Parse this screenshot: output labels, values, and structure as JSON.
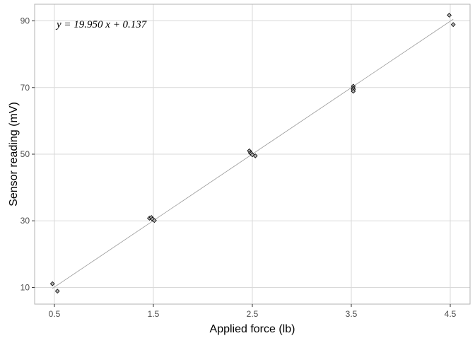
{
  "chart_data": {
    "type": "scatter",
    "title": "",
    "xlabel": "Applied force (lb)",
    "ylabel": "Sensor reading (mV)",
    "xlim": [
      0.3,
      4.7
    ],
    "ylim": [
      5,
      95
    ],
    "xticks": [
      0.5,
      1.5,
      2.5,
      3.5,
      4.5
    ],
    "xtick_labels": [
      "0.5",
      "1.5",
      "2.5",
      "3.5",
      "4.5"
    ],
    "yticks": [
      10,
      30,
      50,
      70,
      90
    ],
    "ytick_labels": [
      "10",
      "30",
      "50",
      "70",
      "90"
    ],
    "grid": true,
    "legend": "none",
    "points": [
      {
        "x": 0.48,
        "y": 11.1
      },
      {
        "x": 0.53,
        "y": 8.9
      },
      {
        "x": 1.46,
        "y": 30.8
      },
      {
        "x": 1.48,
        "y": 31.0
      },
      {
        "x": 1.49,
        "y": 30.5
      },
      {
        "x": 1.51,
        "y": 30.1
      },
      {
        "x": 2.47,
        "y": 51.0
      },
      {
        "x": 2.48,
        "y": 50.4
      },
      {
        "x": 2.49,
        "y": 50.2
      },
      {
        "x": 2.5,
        "y": 49.8
      },
      {
        "x": 2.53,
        "y": 49.5
      },
      {
        "x": 3.52,
        "y": 70.4
      },
      {
        "x": 3.52,
        "y": 69.8
      },
      {
        "x": 3.52,
        "y": 69.4
      },
      {
        "x": 3.52,
        "y": 68.9
      },
      {
        "x": 4.49,
        "y": 91.7
      },
      {
        "x": 4.53,
        "y": 88.9
      }
    ],
    "fit": {
      "slope": 19.95,
      "intercept": 0.137,
      "equation": "y = 19.950 x + 0.137"
    },
    "colors": {
      "point_fill": "#b3b3b3",
      "point_stroke": "#000000",
      "fit_line": "#999999",
      "grid": "#d9d9d9",
      "panel_border": "#b3b3b3"
    }
  }
}
